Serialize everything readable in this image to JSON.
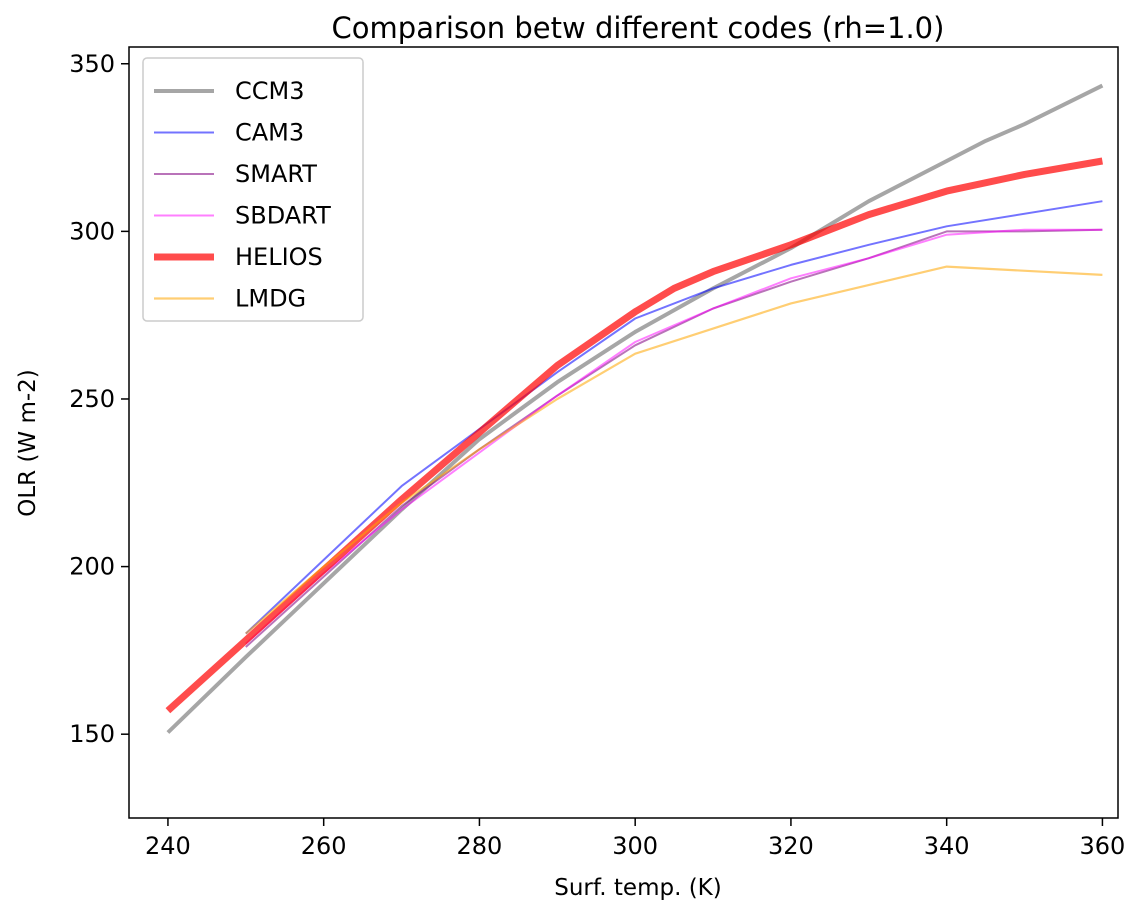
{
  "chart_data": {
    "type": "line",
    "title": "Comparison betw different codes (rh=1.0)",
    "xlabel": "Surf. temp. (K)",
    "ylabel": "OLR (W m-2)",
    "xlim": [
      235,
      362
    ],
    "ylim": [
      125,
      355
    ],
    "xticks": [
      240,
      260,
      280,
      300,
      320,
      340,
      360
    ],
    "yticks": [
      150,
      200,
      250,
      300,
      350
    ],
    "grid": false,
    "legend": "top-left",
    "series": [
      {
        "name": "CCM3",
        "color": "#808080",
        "opacity": 0.7,
        "width": 4,
        "x": [
          240,
          250,
          260,
          270,
          280,
          290,
          300,
          310,
          320,
          330,
          340,
          345,
          350,
          360
        ],
        "y": [
          150.5,
          173,
          195,
          217,
          238,
          255,
          270,
          283,
          295,
          309,
          321,
          327,
          332,
          343.5
        ]
      },
      {
        "name": "CAM3",
        "color": "#0000ff",
        "opacity": 0.55,
        "width": 2,
        "x": [
          250,
          260,
          270,
          280,
          290,
          300,
          310,
          320,
          330,
          340,
          360
        ],
        "y": [
          180,
          202,
          224,
          241,
          258,
          274,
          283,
          290,
          296,
          301.5,
          309
        ]
      },
      {
        "name": "SMART",
        "color": "#800080",
        "opacity": 0.55,
        "width": 2,
        "x": [
          250,
          260,
          270,
          280,
          290,
          300,
          310,
          320,
          330,
          340,
          350,
          360
        ],
        "y": [
          176,
          197,
          218,
          235,
          251,
          266,
          277,
          285,
          292,
          300,
          300,
          300.5
        ]
      },
      {
        "name": "SBDART",
        "color": "#ff00ff",
        "opacity": 0.5,
        "width": 2,
        "x": [
          250,
          260,
          270,
          280,
          290,
          300,
          310,
          320,
          330,
          340,
          350,
          360
        ],
        "y": [
          177,
          198,
          217,
          234,
          251,
          267,
          277,
          286,
          292,
          299,
          300.5,
          300.5
        ]
      },
      {
        "name": "HELIOS",
        "color": "#ff0000",
        "opacity": 0.7,
        "width": 7,
        "x": [
          240,
          250,
          260,
          270,
          280,
          290,
          300,
          305,
          310,
          320,
          330,
          340,
          350,
          360
        ],
        "y": [
          157,
          178,
          199,
          220,
          240,
          260,
          276,
          283,
          288,
          296,
          305,
          312,
          317,
          321
        ]
      },
      {
        "name": "LMDG",
        "color": "#ffa500",
        "opacity": 0.55,
        "width": 2.2,
        "x": [
          250,
          260,
          270,
          280,
          290,
          300,
          320,
          340,
          360
        ],
        "y": [
          180,
          200,
          219,
          235,
          250,
          263.5,
          278.5,
          289.5,
          287
        ]
      }
    ]
  }
}
